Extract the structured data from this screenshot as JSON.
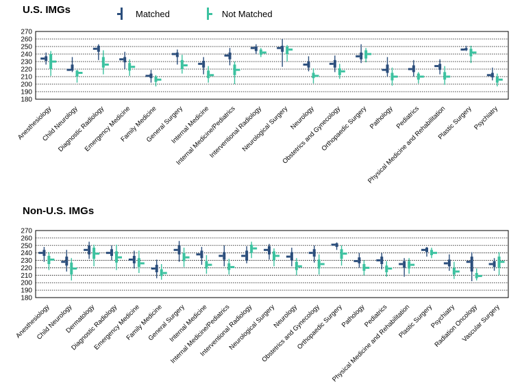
{
  "legend": {
    "matched_label": "Matched",
    "not_matched_label": "Not Matched"
  },
  "colors": {
    "matched": "#2b4e7c",
    "not_matched": "#3cc2a0",
    "grid": "#000000"
  },
  "chart_data": [
    {
      "type": "box",
      "title": "U.S. IMGs",
      "ylim": [
        180,
        270
      ],
      "yticks": [
        180,
        190,
        200,
        210,
        220,
        230,
        240,
        250,
        260,
        270
      ],
      "grid": true,
      "legend_position": "top",
      "categories": [
        "Anesthesiology",
        "Child Neurology",
        "Diagnostic Radiology",
        "Emergency Medicine",
        "Family Medicine",
        "General Surgery",
        "Internal Medicine",
        "Internal Medicine/Pediatrics",
        "Interventional Radiology",
        "Neurological Surgery",
        "Neurology",
        "Obstetrics and Gynecology",
        "Orthopaedic Surgery",
        "Pathology",
        "Pediatrics",
        "Physical Medicine and Rehabilitation",
        "Plastic Surgery",
        "Psychiatry"
      ],
      "series": [
        {
          "name": "Matched",
          "boxes": [
            {
              "min": 226,
              "q1": 231,
              "median": 234,
              "q3": 237,
              "max": 242
            },
            {
              "min": 216,
              "q1": 218,
              "median": 219,
              "q3": 226,
              "max": 236
            },
            {
              "min": 232,
              "q1": 243,
              "median": 247,
              "q3": 251,
              "max": 253
            },
            {
              "min": 220,
              "q1": 229,
              "median": 233,
              "q3": 236,
              "max": 243
            },
            {
              "min": 202,
              "q1": 208,
              "median": 211,
              "q3": 214,
              "max": 219
            },
            {
              "min": 226,
              "q1": 236,
              "median": 240,
              "q3": 242,
              "max": 246
            },
            {
              "min": 213,
              "q1": 222,
              "median": 227,
              "q3": 231,
              "max": 236
            },
            {
              "min": 225,
              "q1": 233,
              "median": 238,
              "q3": 242,
              "max": 248
            },
            {
              "min": 240,
              "q1": 244,
              "median": 248,
              "q3": 250,
              "max": 253
            },
            {
              "min": 223,
              "q1": 243,
              "median": 248,
              "q3": 251,
              "max": 260
            },
            {
              "min": 217,
              "q1": 222,
              "median": 226,
              "q3": 230,
              "max": 237
            },
            {
              "min": 216,
              "q1": 222,
              "median": 227,
              "q3": 232,
              "max": 238
            },
            {
              "min": 228,
              "q1": 233,
              "median": 237,
              "q3": 242,
              "max": 253
            },
            {
              "min": 210,
              "q1": 215,
              "median": 219,
              "q3": 226,
              "max": 236
            },
            {
              "min": 210,
              "q1": 216,
              "median": 220,
              "q3": 225,
              "max": 232
            },
            {
              "min": 213,
              "q1": 219,
              "median": 224,
              "q3": 227,
              "max": 233
            },
            {
              "min": 244,
              "q1": 245,
              "median": 246,
              "q3": 248,
              "max": 251
            },
            {
              "min": 205,
              "q1": 209,
              "median": 212,
              "q3": 215,
              "max": 222
            }
          ]
        },
        {
          "name": "Not Matched",
          "boxes": [
            {
              "min": 211,
              "q1": 220,
              "median": 230,
              "q3": 240,
              "max": 244
            },
            {
              "min": 202,
              "q1": 210,
              "median": 215,
              "q3": 218,
              "max": 219
            },
            {
              "min": 213,
              "q1": 222,
              "median": 226,
              "q3": 236,
              "max": 245
            },
            {
              "min": 211,
              "q1": 218,
              "median": 223,
              "q3": 228,
              "max": 233
            },
            {
              "min": 197,
              "q1": 203,
              "median": 206,
              "q3": 210,
              "max": 212
            },
            {
              "min": 214,
              "q1": 220,
              "median": 225,
              "q3": 232,
              "max": 239
            },
            {
              "min": 202,
              "q1": 208,
              "median": 212,
              "q3": 218,
              "max": 224
            },
            {
              "min": 200,
              "q1": 212,
              "median": 219,
              "q3": 226,
              "max": 230
            },
            {
              "min": 236,
              "q1": 239,
              "median": 242,
              "q3": 246,
              "max": 248
            },
            {
              "min": 230,
              "q1": 240,
              "median": 246,
              "q3": 250,
              "max": 252
            },
            {
              "min": 201,
              "q1": 208,
              "median": 211,
              "q3": 215,
              "max": 221
            },
            {
              "min": 207,
              "q1": 212,
              "median": 217,
              "q3": 221,
              "max": 227
            },
            {
              "min": 229,
              "q1": 234,
              "median": 240,
              "q3": 245,
              "max": 248
            },
            {
              "min": 198,
              "q1": 205,
              "median": 210,
              "q3": 215,
              "max": 222
            },
            {
              "min": 201,
              "q1": 206,
              "median": 210,
              "q3": 214,
              "max": 216
            },
            {
              "min": 199,
              "q1": 206,
              "median": 210,
              "q3": 216,
              "max": 224
            },
            {
              "min": 228,
              "q1": 237,
              "median": 242,
              "q3": 247,
              "max": 251
            },
            {
              "min": 197,
              "q1": 202,
              "median": 206,
              "q3": 210,
              "max": 214
            }
          ]
        }
      ]
    },
    {
      "type": "box",
      "title": "Non-U.S. IMGs",
      "ylim": [
        180,
        270
      ],
      "yticks": [
        180,
        190,
        200,
        210,
        220,
        230,
        240,
        250,
        260,
        270
      ],
      "grid": true,
      "categories": [
        "Anesthesiology",
        "Child Neurology",
        "Dermatology",
        "Diagnostic Radiology",
        "Emergency Medicine",
        "Family Medicine",
        "General Surgery",
        "Internal Medicine",
        "Internal Medicine/Pediatrics",
        "Interventional Radiology",
        "Neurological Surgery",
        "Neurology",
        "Obstetrics and Gynecology",
        "Orthopaedic Surgery",
        "Pathology",
        "Pediatrics",
        "Physical Medicine and Rehabilitation",
        "Plastic Surgery",
        "Psychiatry",
        "Radiation Oncology",
        "Vascular Surgery"
      ],
      "series": [
        {
          "name": "Matched",
          "boxes": [
            {
              "min": 228,
              "q1": 236,
              "median": 240,
              "q3": 244,
              "max": 248
            },
            {
              "min": 215,
              "q1": 223,
              "median": 228,
              "q3": 235,
              "max": 244
            },
            {
              "min": 232,
              "q1": 238,
              "median": 244,
              "q3": 250,
              "max": 255
            },
            {
              "min": 230,
              "q1": 236,
              "median": 240,
              "q3": 245,
              "max": 250
            },
            {
              "min": 219,
              "q1": 226,
              "median": 231,
              "q3": 236,
              "max": 243
            },
            {
              "min": 206,
              "q1": 214,
              "median": 219,
              "q3": 224,
              "max": 231
            },
            {
              "min": 228,
              "q1": 238,
              "median": 244,
              "q3": 250,
              "max": 256
            },
            {
              "min": 224,
              "q1": 233,
              "median": 238,
              "q3": 243,
              "max": 248
            },
            {
              "min": 222,
              "q1": 231,
              "median": 236,
              "q3": 241,
              "max": 250
            },
            {
              "min": 226,
              "q1": 230,
              "median": 236,
              "q3": 243,
              "max": 249
            },
            {
              "min": 231,
              "q1": 238,
              "median": 244,
              "q3": 249,
              "max": 252
            },
            {
              "min": 222,
              "q1": 230,
              "median": 235,
              "q3": 241,
              "max": 247
            },
            {
              "min": 227,
              "q1": 235,
              "median": 240,
              "q3": 245,
              "max": 250
            },
            {
              "min": 244,
              "q1": 248,
              "median": 251,
              "q3": 253,
              "max": 254
            },
            {
              "min": 220,
              "q1": 226,
              "median": 229,
              "q3": 234,
              "max": 240
            },
            {
              "min": 218,
              "q1": 225,
              "median": 230,
              "q3": 235,
              "max": 240
            },
            {
              "min": 208,
              "q1": 220,
              "median": 225,
              "q3": 229,
              "max": 233
            },
            {
              "min": 235,
              "q1": 241,
              "median": 244,
              "q3": 247,
              "max": 248
            },
            {
              "min": 216,
              "q1": 222,
              "median": 226,
              "q3": 231,
              "max": 238
            },
            {
              "min": 202,
              "q1": 215,
              "median": 228,
              "q3": 235,
              "max": 241
            },
            {
              "min": 216,
              "q1": 221,
              "median": 225,
              "q3": 229,
              "max": 233
            }
          ]
        },
        {
          "name": "Not Matched",
          "boxes": [
            {
              "min": 217,
              "q1": 225,
              "median": 231,
              "q3": 236,
              "max": 241
            },
            {
              "min": 203,
              "q1": 211,
              "median": 219,
              "q3": 227,
              "max": 233
            },
            {
              "min": 222,
              "q1": 232,
              "median": 239,
              "q3": 247,
              "max": 251
            },
            {
              "min": 217,
              "q1": 227,
              "median": 234,
              "q3": 242,
              "max": 251
            },
            {
              "min": 213,
              "q1": 221,
              "median": 226,
              "q3": 233,
              "max": 243
            },
            {
              "min": 204,
              "q1": 209,
              "median": 213,
              "q3": 218,
              "max": 225
            },
            {
              "min": 221,
              "q1": 229,
              "median": 234,
              "q3": 240,
              "max": 247
            },
            {
              "min": 212,
              "q1": 219,
              "median": 224,
              "q3": 229,
              "max": 237
            },
            {
              "min": 211,
              "q1": 217,
              "median": 221,
              "q3": 226,
              "max": 232
            },
            {
              "min": 233,
              "q1": 240,
              "median": 246,
              "q3": 251,
              "max": 255
            },
            {
              "min": 222,
              "q1": 230,
              "median": 236,
              "q3": 242,
              "max": 246
            },
            {
              "min": 210,
              "q1": 217,
              "median": 222,
              "q3": 228,
              "max": 233
            },
            {
              "min": 211,
              "q1": 219,
              "median": 225,
              "q3": 231,
              "max": 238
            },
            {
              "min": 223,
              "q1": 232,
              "median": 239,
              "q3": 245,
              "max": 250
            },
            {
              "min": 210,
              "q1": 216,
              "median": 220,
              "q3": 225,
              "max": 230
            },
            {
              "min": 208,
              "q1": 214,
              "median": 219,
              "q3": 223,
              "max": 229
            },
            {
              "min": 212,
              "q1": 219,
              "median": 224,
              "q3": 229,
              "max": 233
            },
            {
              "min": 233,
              "q1": 237,
              "median": 240,
              "q3": 244,
              "max": 247
            },
            {
              "min": 205,
              "q1": 211,
              "median": 215,
              "q3": 220,
              "max": 228
            },
            {
              "min": 203,
              "q1": 206,
              "median": 209,
              "q3": 213,
              "max": 219
            },
            {
              "min": 210,
              "q1": 220,
              "median": 228,
              "q3": 235,
              "max": 241
            }
          ]
        }
      ]
    }
  ]
}
